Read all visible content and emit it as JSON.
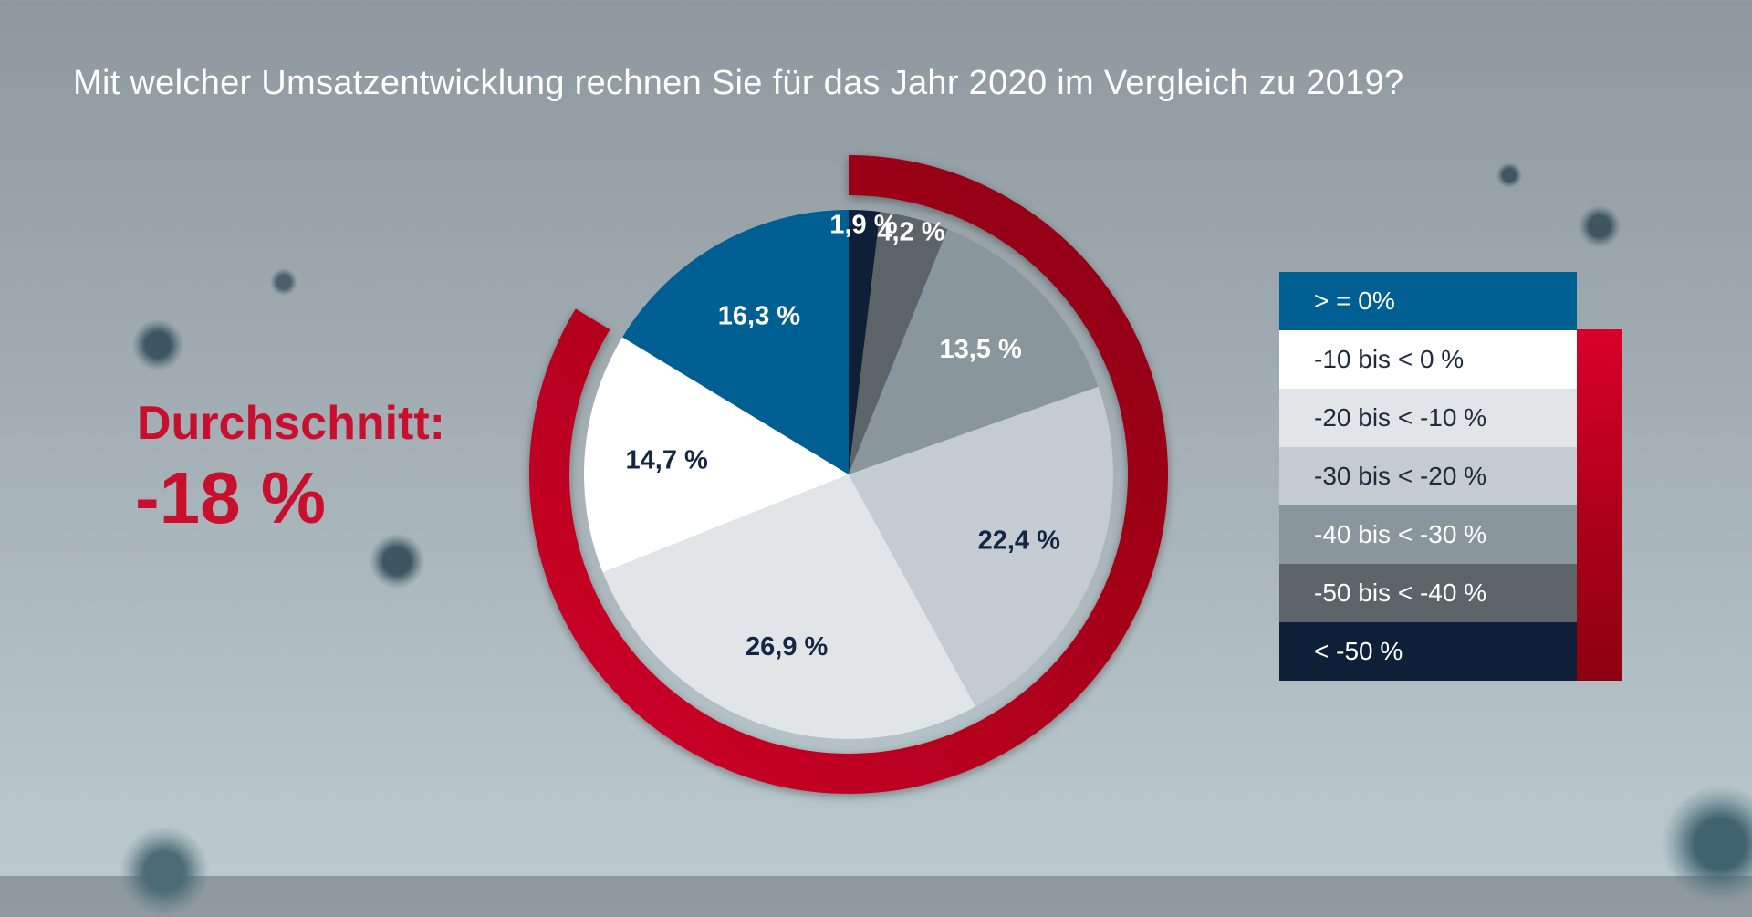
{
  "title": "Mit welcher Umsatzentwicklung rechnen Sie für das Jahr 2020 im Vergleich zu 2019?",
  "average": {
    "label": "Durchschnitt:",
    "value": "-18 %"
  },
  "colors": {
    "accent_red": "#c8102e",
    "ring_red_dark": "#8a0010",
    "ring_red_light": "#d4002a"
  },
  "chart_data": {
    "type": "pie",
    "title": "Mit welcher Umsatzentwicklung rechnen Sie für das Jahr 2020 im Vergleich zu 2019?",
    "legend_position": "right",
    "categories": [
      ">= 0%",
      "-10 bis < 0 %",
      "-20 bis < -10 %",
      "-30 bis < -20 %",
      "-40 bis < -30 %",
      "-50 bis < -40 %",
      "< -50 %"
    ],
    "slices": [
      {
        "category": "< -50 %",
        "value": 1.9,
        "label": "1,9 %",
        "color": "#0f1f38",
        "label_color": "#ffffff"
      },
      {
        "category": "-50 bis < -40 %",
        "value": 4.2,
        "label": "4,2 %",
        "color": "#5c6468",
        "label_color": "#ffffff"
      },
      {
        "category": "-40 bis < -30 %",
        "value": 13.5,
        "label": "13,5 %",
        "color": "#8a969e",
        "label_color": "#ffffff"
      },
      {
        "category": "-30 bis < -20 %",
        "value": 22.4,
        "label": "22,4 %",
        "color": "#c4cbd1",
        "label_color": "#132744"
      },
      {
        "category": "-20 bis < -10 %",
        "value": 26.9,
        "label": "26,9 %",
        "color": "#e2e5e8",
        "label_color": "#132744"
      },
      {
        "category": "-10 bis < 0 %",
        "value": 14.7,
        "label": "14,7 %",
        "color": "#ffffff",
        "label_color": "#132744"
      },
      {
        "category": ">= 0%",
        "value": 16.3,
        "label": "16,3 %",
        "color": "#005f92",
        "label_color": "#ffffff"
      }
    ]
  },
  "legend": {
    "items": [
      {
        "label": "> = 0%",
        "color": "#005f92",
        "text_color": "#ffffff"
      },
      {
        "label": "-10 bis < 0 %",
        "color": "#ffffff",
        "text_color": "#1d2b3a"
      },
      {
        "label": "-20 bis < -10 %",
        "color": "#e2e5e8",
        "text_color": "#1d2b3a"
      },
      {
        "label": "-30 bis < -20 %",
        "color": "#c4cbd1",
        "text_color": "#1d2b3a"
      },
      {
        "label": "-40 bis < -30 %",
        "color": "#8a969e",
        "text_color": "#ffffff"
      },
      {
        "label": "-50 bis < -40 %",
        "color": "#5c6468",
        "text_color": "#ffffff"
      },
      {
        "label": "< -50 %",
        "color": "#0f1f38",
        "text_color": "#ffffff"
      }
    ]
  }
}
